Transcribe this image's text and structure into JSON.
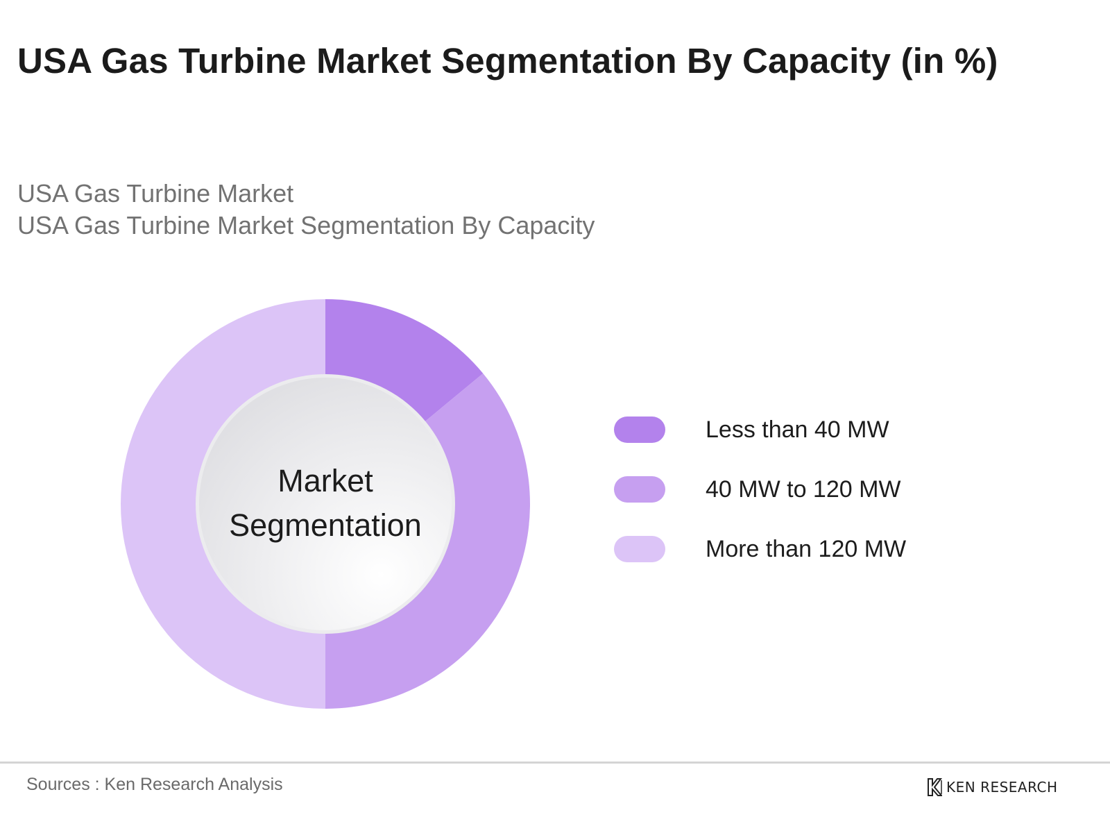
{
  "header": {
    "title": "USA Gas Turbine Market Segmentation By Capacity (in %)",
    "subtitle_line1": "USA Gas Turbine Market",
    "subtitle_line2": "USA Gas Turbine Market Segmentation By Capacity"
  },
  "chart_data": {
    "type": "pie",
    "variant": "donut",
    "title": "USA Gas Turbine Market Segmentation By Capacity (in %)",
    "center_label_line1": "Market",
    "center_label_line2": "Segmentation",
    "unit": "%",
    "categories": [
      "Less than 40 MW",
      "40 MW to 120 MW",
      "More than 120 MW"
    ],
    "values": [
      14,
      36,
      50
    ],
    "colors": [
      "#b382ec",
      "#c69ff0",
      "#dcc4f7"
    ],
    "start_angle": "12 o'clock",
    "direction": "clockwise",
    "legend_position": "right"
  },
  "footer": {
    "source": "Sources : Ken Research Analysis",
    "logo_text": "KEN RESEARCH",
    "logo_icon": "ken-research-logo-icon"
  }
}
